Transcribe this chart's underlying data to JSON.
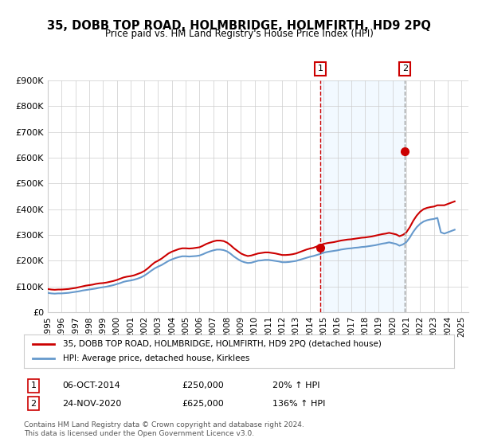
{
  "title": "35, DOBB TOP ROAD, HOLMBRIDGE, HOLMFIRTH, HD9 2PQ",
  "subtitle": "Price paid vs. HM Land Registry's House Price Index (HPI)",
  "title_fontsize": 11,
  "subtitle_fontsize": 9,
  "background_color": "#ffffff",
  "plot_bg_color": "#ffffff",
  "grid_color": "#cccccc",
  "legend_label_red": "35, DOBB TOP ROAD, HOLMBRIDGE, HOLMFIRTH, HD9 2PQ (detached house)",
  "legend_label_blue": "HPI: Average price, detached house, Kirklees",
  "annotation1_label": "1",
  "annotation1_date": "06-OCT-2014",
  "annotation1_price": "£250,000",
  "annotation1_pct": "20% ↑ HPI",
  "annotation2_label": "2",
  "annotation2_date": "24-NOV-2020",
  "annotation2_price": "£625,000",
  "annotation2_pct": "136% ↑ HPI",
  "footer1": "Contains HM Land Registry data © Crown copyright and database right 2024.",
  "footer2": "This data is licensed under the Open Government Licence v3.0.",
  "ylim": [
    0,
    900000
  ],
  "yticks": [
    0,
    100000,
    200000,
    300000,
    400000,
    500000,
    600000,
    700000,
    800000,
    900000
  ],
  "ytick_labels": [
    "£0",
    "£100K",
    "£200K",
    "£300K",
    "£400K",
    "£500K",
    "£600K",
    "£700K",
    "£800K",
    "£900K"
  ],
  "xlim_start": 1995.0,
  "xlim_end": 2025.5,
  "xticks": [
    1995,
    1996,
    1997,
    1998,
    1999,
    2000,
    2001,
    2002,
    2003,
    2004,
    2005,
    2006,
    2007,
    2008,
    2009,
    2010,
    2011,
    2012,
    2013,
    2014,
    2015,
    2016,
    2017,
    2018,
    2019,
    2020,
    2021,
    2022,
    2023,
    2024,
    2025
  ],
  "sale1_x": 2014.76,
  "sale1_y": 250000,
  "sale2_x": 2020.9,
  "sale2_y": 625000,
  "vline1_x": 2014.76,
  "vline2_x": 2020.9,
  "red_color": "#cc0000",
  "blue_color": "#6699cc",
  "vline_color": "#cc0000",
  "vline2_color": "#aaaaaa",
  "sale_dot_color": "#cc0000",
  "hpi_red_data_x": [
    1995.0,
    1995.25,
    1995.5,
    1995.75,
    1996.0,
    1996.25,
    1996.5,
    1996.75,
    1997.0,
    1997.25,
    1997.5,
    1997.75,
    1998.0,
    1998.25,
    1998.5,
    1998.75,
    1999.0,
    1999.25,
    1999.5,
    1999.75,
    2000.0,
    2000.25,
    2000.5,
    2000.75,
    2001.0,
    2001.25,
    2001.5,
    2001.75,
    2002.0,
    2002.25,
    2002.5,
    2002.75,
    2003.0,
    2003.25,
    2003.5,
    2003.75,
    2004.0,
    2004.25,
    2004.5,
    2004.75,
    2005.0,
    2005.25,
    2005.5,
    2005.75,
    2006.0,
    2006.25,
    2006.5,
    2006.75,
    2007.0,
    2007.25,
    2007.5,
    2007.75,
    2008.0,
    2008.25,
    2008.5,
    2008.75,
    2009.0,
    2009.25,
    2009.5,
    2009.75,
    2010.0,
    2010.25,
    2010.5,
    2010.75,
    2011.0,
    2011.25,
    2011.5,
    2011.75,
    2012.0,
    2012.25,
    2012.5,
    2012.75,
    2013.0,
    2013.25,
    2013.5,
    2013.75,
    2014.0,
    2014.25,
    2014.5,
    2014.75,
    2015.0,
    2015.25,
    2015.5,
    2015.75,
    2016.0,
    2016.25,
    2016.5,
    2016.75,
    2017.0,
    2017.25,
    2017.5,
    2017.75,
    2018.0,
    2018.25,
    2018.5,
    2018.75,
    2019.0,
    2019.25,
    2019.5,
    2019.75,
    2020.0,
    2020.25,
    2020.5,
    2020.75,
    2021.0,
    2021.25,
    2021.5,
    2021.75,
    2022.0,
    2022.25,
    2022.5,
    2022.75,
    2023.0,
    2023.25,
    2023.5,
    2023.75,
    2024.0,
    2024.25,
    2024.5
  ],
  "hpi_red_data_y": [
    90000,
    88000,
    87000,
    88000,
    88000,
    89000,
    90000,
    92000,
    94000,
    97000,
    100000,
    103000,
    105000,
    107000,
    110000,
    112000,
    113000,
    115000,
    118000,
    121000,
    125000,
    130000,
    135000,
    138000,
    140000,
    143000,
    148000,
    153000,
    160000,
    170000,
    182000,
    193000,
    200000,
    208000,
    218000,
    228000,
    235000,
    240000,
    245000,
    248000,
    248000,
    247000,
    248000,
    250000,
    252000,
    258000,
    265000,
    270000,
    275000,
    278000,
    278000,
    276000,
    270000,
    260000,
    248000,
    238000,
    228000,
    222000,
    218000,
    220000,
    224000,
    228000,
    230000,
    232000,
    232000,
    230000,
    228000,
    225000,
    222000,
    222000,
    223000,
    225000,
    228000,
    233000,
    238000,
    243000,
    247000,
    250000,
    255000,
    260000,
    265000,
    268000,
    270000,
    272000,
    275000,
    278000,
    280000,
    282000,
    283000,
    285000,
    287000,
    289000,
    290000,
    292000,
    294000,
    297000,
    300000,
    303000,
    305000,
    308000,
    305000,
    302000,
    295000,
    300000,
    310000,
    330000,
    355000,
    375000,
    390000,
    400000,
    405000,
    408000,
    410000,
    415000,
    415000,
    415000,
    420000,
    425000,
    430000
  ],
  "hpi_blue_data_x": [
    1995.0,
    1995.25,
    1995.5,
    1995.75,
    1996.0,
    1996.25,
    1996.5,
    1996.75,
    1997.0,
    1997.25,
    1997.5,
    1997.75,
    1998.0,
    1998.25,
    1998.5,
    1998.75,
    1999.0,
    1999.25,
    1999.5,
    1999.75,
    2000.0,
    2000.25,
    2000.5,
    2000.75,
    2001.0,
    2001.25,
    2001.5,
    2001.75,
    2002.0,
    2002.25,
    2002.5,
    2002.75,
    2003.0,
    2003.25,
    2003.5,
    2003.75,
    2004.0,
    2004.25,
    2004.5,
    2004.75,
    2005.0,
    2005.25,
    2005.5,
    2005.75,
    2006.0,
    2006.25,
    2006.5,
    2006.75,
    2007.0,
    2007.25,
    2007.5,
    2007.75,
    2008.0,
    2008.25,
    2008.5,
    2008.75,
    2009.0,
    2009.25,
    2009.5,
    2009.75,
    2010.0,
    2010.25,
    2010.5,
    2010.75,
    2011.0,
    2011.25,
    2011.5,
    2011.75,
    2012.0,
    2012.25,
    2012.5,
    2012.75,
    2013.0,
    2013.25,
    2013.5,
    2013.75,
    2014.0,
    2014.25,
    2014.5,
    2014.75,
    2015.0,
    2015.25,
    2015.5,
    2015.75,
    2016.0,
    2016.25,
    2016.5,
    2016.75,
    2017.0,
    2017.25,
    2017.5,
    2017.75,
    2018.0,
    2018.25,
    2018.5,
    2018.75,
    2019.0,
    2019.25,
    2019.5,
    2019.75,
    2020.0,
    2020.25,
    2020.5,
    2020.75,
    2021.0,
    2021.25,
    2021.5,
    2021.75,
    2022.0,
    2022.25,
    2022.5,
    2022.75,
    2023.0,
    2023.25,
    2023.5,
    2023.75,
    2024.0,
    2024.25,
    2024.5
  ],
  "hpi_blue_data_y": [
    75000,
    73000,
    72000,
    73000,
    73000,
    74000,
    75000,
    77000,
    79000,
    81000,
    84000,
    86000,
    88000,
    90000,
    92000,
    95000,
    97000,
    99000,
    102000,
    105000,
    109000,
    113000,
    118000,
    121000,
    123000,
    126000,
    130000,
    135000,
    142000,
    151000,
    161000,
    170000,
    177000,
    183000,
    191000,
    199000,
    205000,
    210000,
    214000,
    217000,
    217000,
    216000,
    217000,
    218000,
    220000,
    225000,
    231000,
    236000,
    240000,
    243000,
    243000,
    241000,
    236000,
    227000,
    216000,
    207000,
    199000,
    194000,
    191000,
    192000,
    196000,
    200000,
    201000,
    203000,
    203000,
    201000,
    199000,
    197000,
    194000,
    194000,
    195000,
    197000,
    199000,
    203000,
    207000,
    211000,
    215000,
    218000,
    222000,
    226000,
    231000,
    234000,
    236000,
    238000,
    240000,
    243000,
    245000,
    247000,
    248000,
    250000,
    251000,
    253000,
    254000,
    256000,
    258000,
    260000,
    263000,
    266000,
    268000,
    271000,
    268000,
    265000,
    258000,
    263000,
    272000,
    290000,
    312000,
    330000,
    343000,
    352000,
    357000,
    360000,
    362000,
    366000,
    310000,
    305000,
    310000,
    315000,
    320000
  ]
}
